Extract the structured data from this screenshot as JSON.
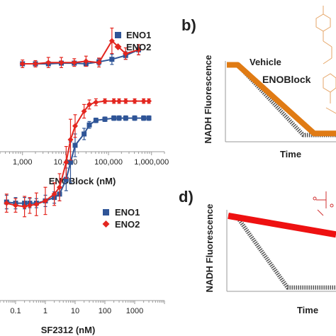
{
  "colors": {
    "eno1": "#2f5597",
    "eno2": "#e3261f",
    "vehicle": "#555555",
    "enoblock": "#e07b14",
    "sf2312_line": "#ee1111",
    "axis": "#999999",
    "structure": "#e6a668",
    "phosphonate": "#d03030"
  },
  "chart_data": [
    {
      "panel": "a",
      "type": "line",
      "xscale": "log",
      "xlim": [
        300,
        2000000
      ],
      "xticks": [
        "1,000",
        "10,000",
        "100,000",
        "1,000,000"
      ],
      "xlabel": "ENOBlock (nM)",
      "ylabel": "",
      "grid": false,
      "legend": "top-right",
      "x": [
        1000,
        2000,
        4000,
        8000,
        16000,
        30000,
        60000,
        120000,
        250000,
        500000
      ],
      "series": [
        {
          "name": "ENO1",
          "marker": "square",
          "values": [
            100,
            100,
            100,
            99,
            99,
            100,
            97,
            93,
            87,
            78
          ],
          "err": [
            3,
            3,
            3,
            3,
            3,
            3,
            5,
            8,
            6,
            8
          ]
        },
        {
          "name": "ENO2",
          "marker": "diamond",
          "values": [
            100,
            100,
            98,
            98,
            98,
            96,
            98,
            64,
            84,
            78
          ],
          "err": [
            6,
            5,
            8,
            8,
            6,
            8,
            7,
            20,
            9,
            8
          ]
        }
      ]
    },
    {
      "panel": "b",
      "type": "line",
      "xlabel": "Time",
      "ylabel": "NADH Fluorescence",
      "legend": "inline",
      "series": [
        {
          "name": "Vehicle",
          "x": [
            0,
            10,
            70,
            92,
            100
          ],
          "values": [
            95,
            95,
            5,
            5,
            5
          ]
        },
        {
          "name": "ENOBlock",
          "x": [
            0,
            10,
            80,
            90,
            100
          ],
          "values": [
            95,
            95,
            7,
            7,
            7
          ]
        }
      ]
    },
    {
      "panel": "c",
      "type": "line",
      "xscale": "log",
      "xlim": [
        0.03,
        10000
      ],
      "xticks": [
        "0.1",
        "1",
        "10",
        "100",
        "1000"
      ],
      "xlabel": "SF2312 (nM)",
      "ylabel": "",
      "grid": false,
      "legend": "center-right",
      "x": [
        0.05,
        0.1,
        0.2,
        0.3,
        0.5,
        1,
        2,
        3,
        5,
        7,
        10,
        20,
        30,
        50,
        100,
        200,
        300,
        500,
        1000,
        2000,
        3000
      ],
      "series": [
        {
          "name": "ENO1",
          "marker": "square",
          "values": [
            100,
            101,
            101,
            101,
            101,
            99,
            96,
            93,
            80,
            65,
            50,
            40,
            32,
            28,
            27,
            26,
            26,
            26,
            26,
            26,
            26
          ],
          "err": [
            6,
            5,
            5,
            4,
            4,
            5,
            5,
            6,
            10,
            18,
            10,
            5,
            3,
            2,
            2,
            2,
            2,
            2,
            2,
            2,
            2
          ]
        },
        {
          "name": "ENO2",
          "marker": "diamond",
          "values": [
            101,
            103,
            104,
            103,
            102,
            99,
            93,
            87,
            65,
            45,
            33,
            20,
            14,
            12,
            11,
            11,
            11,
            11,
            11,
            11,
            11
          ],
          "err": [
            8,
            6,
            9,
            7,
            10,
            12,
            10,
            12,
            14,
            18,
            10,
            6,
            4,
            3,
            2,
            2,
            2,
            2,
            2,
            2,
            2
          ]
        }
      ]
    },
    {
      "panel": "d",
      "type": "line",
      "xlabel": "Time",
      "ylabel": "NADH Fluorescence",
      "legend": "none",
      "series": [
        {
          "name": "",
          "x": [
            0,
            8,
            55,
            100
          ],
          "values": [
            95,
            95,
            4,
            4
          ]
        },
        {
          "name": "",
          "x": [
            0,
            100
          ],
          "values": [
            96,
            72
          ]
        }
      ]
    }
  ],
  "panel_b": {
    "letter": "b)",
    "ylabel": "NADH Fluorescence",
    "xlabel": "Time",
    "label_vehicle": "Vehicle",
    "label_enoblock": "ENOBlock"
  },
  "panel_d": {
    "letter": "d)",
    "ylabel": "NADH Fluorescence",
    "xlabel": "Time"
  },
  "panel_a": {
    "legend_eno1": "ENO1",
    "legend_eno2": "ENO2",
    "xlabel": "ENOBlock (nM)"
  },
  "panel_c": {
    "legend_eno1": "ENO1",
    "legend_eno2": "ENO2",
    "xlabel": "SF2312 (nM)"
  }
}
